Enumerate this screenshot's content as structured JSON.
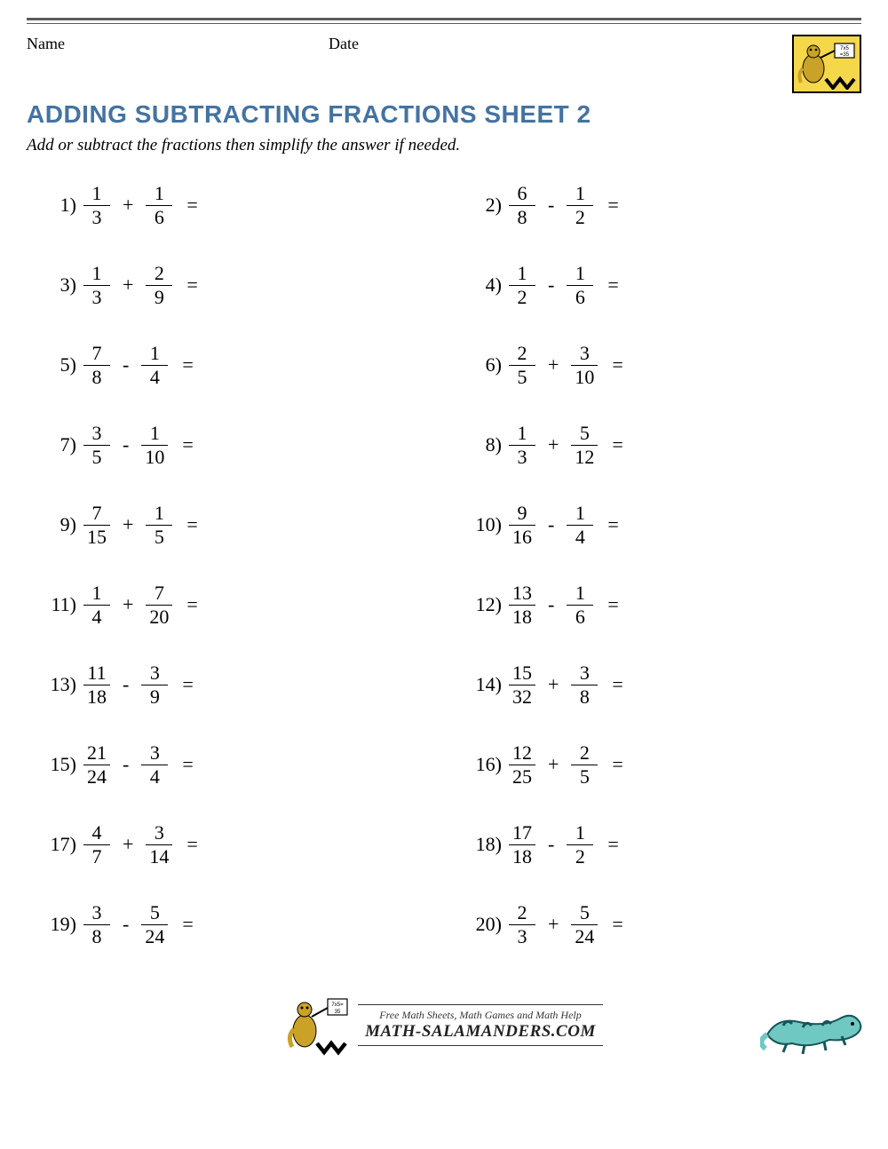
{
  "header": {
    "name_label": "Name",
    "date_label": "Date"
  },
  "title": "ADDING SUBTRACTING FRACTIONS SHEET 2",
  "instructions": "Add or subtract the fractions then simplify the answer if needed.",
  "problems": [
    {
      "n": "1)",
      "a_num": "1",
      "a_den": "3",
      "op": "+",
      "b_num": "1",
      "b_den": "6"
    },
    {
      "n": "2)",
      "a_num": "6",
      "a_den": "8",
      "op": "-",
      "b_num": "1",
      "b_den": "2"
    },
    {
      "n": "3)",
      "a_num": "1",
      "a_den": "3",
      "op": "+",
      "b_num": "2",
      "b_den": "9"
    },
    {
      "n": "4)",
      "a_num": "1",
      "a_den": "2",
      "op": "-",
      "b_num": "1",
      "b_den": "6"
    },
    {
      "n": "5)",
      "a_num": "7",
      "a_den": "8",
      "op": "-",
      "b_num": "1",
      "b_den": "4"
    },
    {
      "n": "6)",
      "a_num": "2",
      "a_den": "5",
      "op": "+",
      "b_num": "3",
      "b_den": "10"
    },
    {
      "n": "7)",
      "a_num": "3",
      "a_den": "5",
      "op": "-",
      "b_num": "1",
      "b_den": "10"
    },
    {
      "n": "8)",
      "a_num": "1",
      "a_den": "3",
      "op": "+",
      "b_num": "5",
      "b_den": "12"
    },
    {
      "n": "9)",
      "a_num": "7",
      "a_den": "15",
      "op": "+",
      "b_num": "1",
      "b_den": "5"
    },
    {
      "n": "10)",
      "a_num": "9",
      "a_den": "16",
      "op": "-",
      "b_num": "1",
      "b_den": "4"
    },
    {
      "n": "11)",
      "a_num": "1",
      "a_den": "4",
      "op": "+",
      "b_num": "7",
      "b_den": "20"
    },
    {
      "n": "12)",
      "a_num": "13",
      "a_den": "18",
      "op": "-",
      "b_num": "1",
      "b_den": "6"
    },
    {
      "n": "13)",
      "a_num": "11",
      "a_den": "18",
      "op": "-",
      "b_num": "3",
      "b_den": "9"
    },
    {
      "n": "14)",
      "a_num": "15",
      "a_den": "32",
      "op": "+",
      "b_num": "3",
      "b_den": "8"
    },
    {
      "n": "15)",
      "a_num": "21",
      "a_den": "24",
      "op": "-",
      "b_num": "3",
      "b_den": "4"
    },
    {
      "n": "16)",
      "a_num": "12",
      "a_den": "25",
      "op": "+",
      "b_num": "2",
      "b_den": "5"
    },
    {
      "n": "17)",
      "a_num": "4",
      "a_den": "7",
      "op": "+",
      "b_num": "3",
      "b_den": "14"
    },
    {
      "n": "18)",
      "a_num": "17",
      "a_den": "18",
      "op": "-",
      "b_num": "1",
      "b_den": "2"
    },
    {
      "n": "19)",
      "a_num": "3",
      "a_den": "8",
      "op": "-",
      "b_num": "5",
      "b_den": "24"
    },
    {
      "n": "20)",
      "a_num": "2",
      "a_den": "3",
      "op": "+",
      "b_num": "5",
      "b_den": "24"
    }
  ],
  "footer": {
    "line1": "Free Math Sheets, Math Games and Math Help",
    "line2": "MATH-SALAMANDERS.COM"
  },
  "colors": {
    "title": "#4473a1",
    "logo_bg": "#f5d74a",
    "lizard_body": "#6fc9c2",
    "lizard_dark": "#16545a",
    "border": "#5c5c5c"
  }
}
